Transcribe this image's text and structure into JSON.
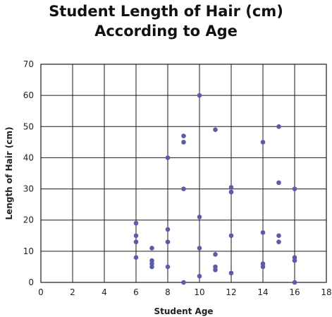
{
  "chart_data": {
    "type": "scatter",
    "title_lines": [
      "Student Length of Hair (cm)",
      "According to Age"
    ],
    "xlabel": "Student Age",
    "ylabel": "Length of Hair (cm)",
    "xlim": [
      0,
      18
    ],
    "ylim": [
      0,
      70
    ],
    "x_ticks": [
      "0",
      "2",
      "4",
      "6",
      "8",
      "10",
      "12",
      "14",
      "16",
      "18"
    ],
    "y_ticks": [
      "0",
      "10",
      "20",
      "30",
      "40",
      "50",
      "60",
      "70"
    ],
    "grid": true,
    "point_color": "#5c5ba8",
    "series": [
      {
        "points": [
          [
            6,
            19
          ],
          [
            6,
            15
          ],
          [
            6,
            13
          ],
          [
            6,
            8
          ],
          [
            7,
            11
          ],
          [
            7,
            7
          ],
          [
            7,
            6
          ],
          [
            7,
            5
          ],
          [
            8,
            40
          ],
          [
            8,
            17
          ],
          [
            8,
            13
          ],
          [
            8,
            5
          ],
          [
            9,
            47
          ],
          [
            9,
            45
          ],
          [
            9,
            30
          ],
          [
            9,
            0
          ],
          [
            10,
            60
          ],
          [
            10,
            21
          ],
          [
            10,
            11
          ],
          [
            10,
            2
          ],
          [
            11,
            49
          ],
          [
            11,
            9
          ],
          [
            11,
            5
          ],
          [
            11,
            4
          ],
          [
            12,
            30.5
          ],
          [
            12,
            29
          ],
          [
            12,
            15
          ],
          [
            12,
            3
          ],
          [
            14,
            45
          ],
          [
            14,
            16
          ],
          [
            14,
            6
          ],
          [
            14,
            5
          ],
          [
            15,
            50
          ],
          [
            15,
            32
          ],
          [
            15,
            15
          ],
          [
            15,
            13
          ],
          [
            16,
            30
          ],
          [
            16,
            8
          ],
          [
            16,
            7
          ],
          [
            16,
            0
          ]
        ]
      }
    ]
  }
}
